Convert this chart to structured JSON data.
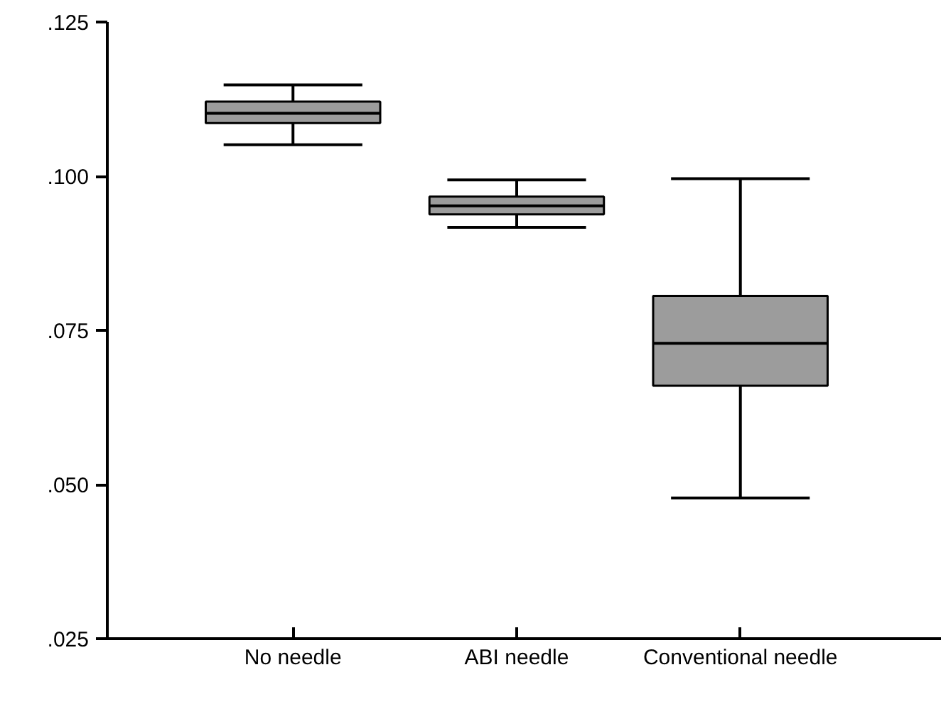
{
  "chart_data": {
    "type": "box",
    "categories": [
      "No needle",
      "ABI needle",
      "Conventional needle"
    ],
    "boxes": [
      {
        "low": 0.1051,
        "q1": 0.1086,
        "median": 0.1102,
        "q3": 0.1121,
        "high": 0.1148
      },
      {
        "low": 0.0917,
        "q1": 0.0938,
        "median": 0.0952,
        "q3": 0.0967,
        "high": 0.0994
      },
      {
        "low": 0.0478,
        "q1": 0.066,
        "median": 0.0729,
        "q3": 0.0806,
        "high": 0.0996
      }
    ],
    "color": "#9c9c9c",
    "ylim": [
      0.025,
      0.125
    ],
    "yticks": [
      {
        "value": 0.025,
        "label": ".025"
      },
      {
        "value": 0.05,
        "label": ".050"
      },
      {
        "value": 0.075,
        "label": ".075"
      },
      {
        "value": 0.1,
        "label": ".100"
      },
      {
        "value": 0.125,
        "label": ".125"
      }
    ],
    "grid": false
  }
}
